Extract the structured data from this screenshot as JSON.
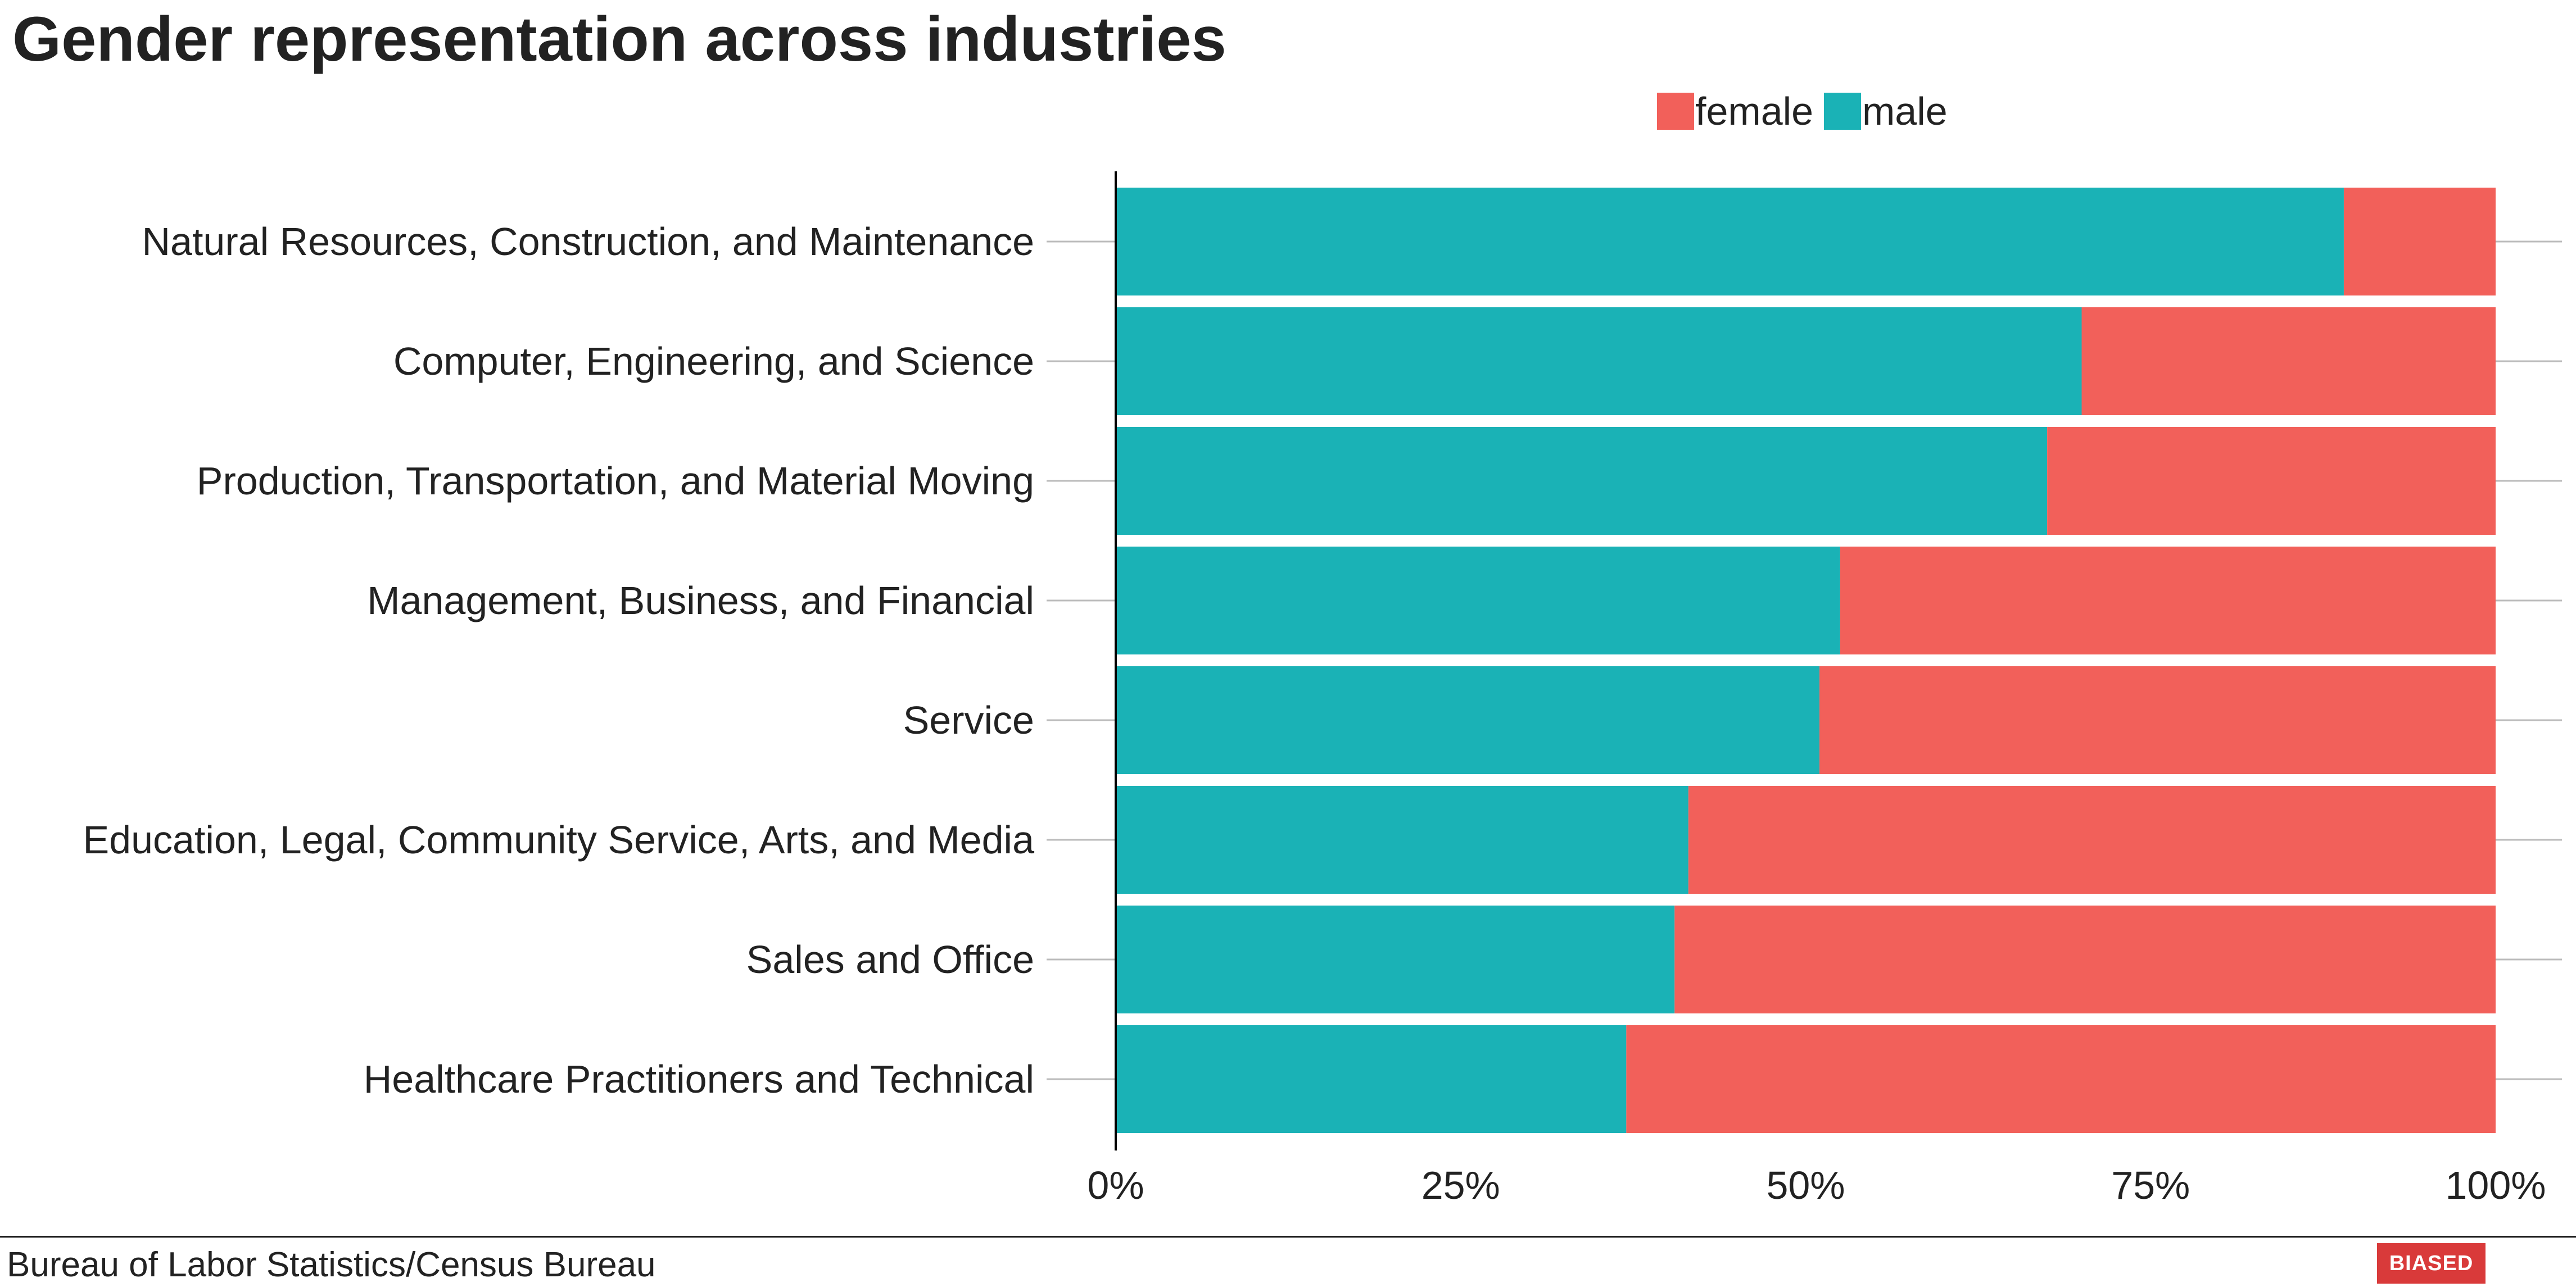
{
  "title": "Gender representation across industries",
  "source": "Bureau of Labor Statistics/Census Bureau",
  "badge": "BIASED",
  "colors": {
    "female": "#f2605a",
    "male": "#1ab2b6",
    "axis": "#000000",
    "grid": "#bbbbbb",
    "text": "#222222",
    "badge": "#d93a3a"
  },
  "chart_data": {
    "type": "bar",
    "orientation": "horizontal",
    "stacked": true,
    "normalized": true,
    "categories": [
      "Natural Resources, Construction, and Maintenance",
      "Computer, Engineering, and Science",
      "Production, Transportation, and Material Moving",
      "Management, Business, and Financial",
      "Service",
      "Education, Legal, Community Service, Arts, and Media",
      "Sales and Office",
      "Healthcare Practitioners and Technical"
    ],
    "series": [
      {
        "name": "male",
        "values": [
          89,
          70,
          67.5,
          52.5,
          51,
          41.5,
          40.5,
          37
        ]
      },
      {
        "name": "female",
        "values": [
          11,
          30,
          32.5,
          47.5,
          49,
          58.5,
          59.5,
          63
        ]
      }
    ],
    "xlim": [
      0,
      100
    ],
    "xticks": [
      "0%",
      "25%",
      "50%",
      "75%",
      "100%"
    ],
    "legend": {
      "position": "top",
      "order": [
        "female",
        "male"
      ]
    },
    "grid": false
  }
}
